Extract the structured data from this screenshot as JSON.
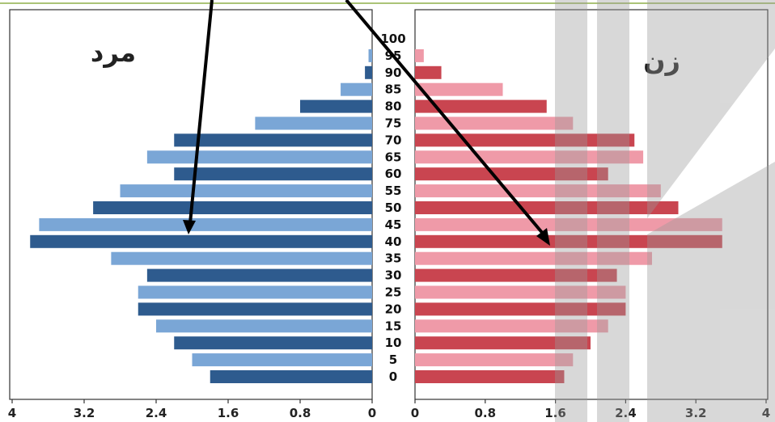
{
  "chart_data": {
    "type": "bar",
    "orientation": "horizontal",
    "subtype": "population-pyramid",
    "categories": [
      "0",
      "5",
      "10",
      "15",
      "20",
      "25",
      "30",
      "35",
      "40",
      "45",
      "50",
      "55",
      "60",
      "65",
      "70",
      "75",
      "80",
      "85",
      "90",
      "95",
      "100"
    ],
    "series": [
      {
        "name": "مرد",
        "side": "left",
        "colors": [
          "#2e5b8e",
          "#7aa6d6"
        ],
        "values": [
          1.8,
          2.0,
          2.2,
          2.4,
          2.6,
          2.6,
          2.5,
          2.9,
          3.8,
          3.7,
          3.1,
          2.8,
          2.2,
          2.5,
          2.2,
          1.3,
          0.8,
          0.35,
          0.08,
          0.04,
          0
        ]
      },
      {
        "name": "زن",
        "side": "right",
        "colors": [
          "#c94550",
          "#ef9aa8"
        ],
        "values": [
          1.7,
          1.8,
          2.0,
          2.2,
          2.4,
          2.4,
          2.3,
          2.7,
          3.5,
          3.5,
          3.0,
          2.8,
          2.2,
          2.6,
          2.5,
          1.8,
          1.5,
          1.0,
          0.3,
          0.1,
          0
        ]
      }
    ],
    "xlim": [
      0,
      4
    ],
    "xticks": [
      "4",
      "3.2",
      "2.4",
      "1.6",
      "0.8",
      "0",
      "0",
      "0.8",
      "1.6",
      "2.4",
      "3.2",
      "4"
    ],
    "grid": false,
    "xlabel": "",
    "ylabel": ""
  },
  "annotations": {
    "arrow_color": "#000000",
    "arrows": 2
  },
  "watermark": {
    "color": "#9a9a9a"
  }
}
